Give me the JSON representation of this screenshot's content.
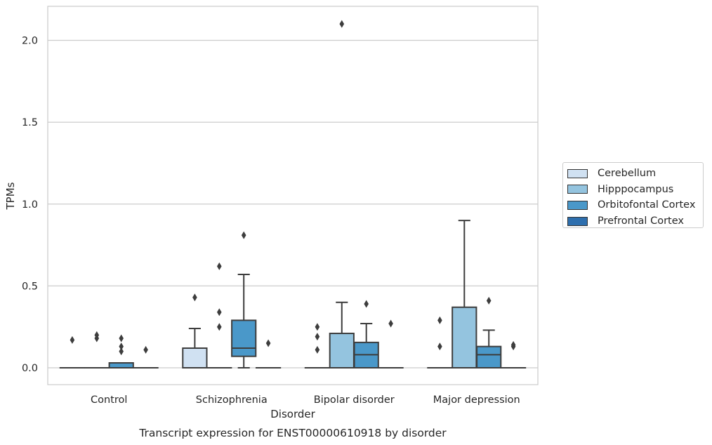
{
  "chart_data": {
    "type": "box",
    "title": "Transcript expression for ENST00000610918 by disorder",
    "xlabel": "Disorder",
    "ylabel": "TPMs",
    "categories": [
      "Control",
      "Schizophrenia",
      "Bipolar disorder",
      "Major depression"
    ],
    "y_ticks": [
      "0.0",
      "0.5",
      "1.0",
      "1.5",
      "2.0"
    ],
    "ylim": [
      -0.1,
      2.22
    ],
    "grid": "horizontal",
    "legend_placement": "right",
    "series": [
      {
        "name": "Cerebellum",
        "color": "#d0e1f2",
        "boxes": [
          {
            "q1": 0,
            "median": 0,
            "q3": 0,
            "whisker_low": 0,
            "whisker_high": 0,
            "outliers": [
              0.17
            ]
          },
          {
            "q1": 0,
            "median": 0,
            "q3": 0.12,
            "whisker_low": 0,
            "whisker_high": 0.24,
            "outliers": [
              0.43
            ]
          },
          {
            "q1": 0,
            "median": 0,
            "q3": 0,
            "whisker_low": 0,
            "whisker_high": 0,
            "outliers": [
              0.25,
              0.19,
              0.11
            ]
          },
          {
            "q1": 0,
            "median": 0,
            "q3": 0,
            "whisker_low": 0,
            "whisker_high": 0,
            "outliers": [
              0.29,
              0.13
            ]
          }
        ]
      },
      {
        "name": "Hipppocampus",
        "color": "#94c4df",
        "boxes": [
          {
            "q1": 0,
            "median": 0,
            "q3": 0,
            "whisker_low": 0,
            "whisker_high": 0,
            "outliers": [
              0.2,
              0.18
            ]
          },
          {
            "q1": 0,
            "median": 0,
            "q3": 0,
            "whisker_low": 0,
            "whisker_high": 0,
            "outliers": [
              0.62,
              0.34,
              0.25
            ]
          },
          {
            "q1": 0,
            "median": 0,
            "q3": 0.21,
            "whisker_low": 0,
            "whisker_high": 0.4,
            "outliers": [
              2.1
            ]
          },
          {
            "q1": 0,
            "median": 0,
            "q3": 0.37,
            "whisker_low": 0,
            "whisker_high": 0.9,
            "outliers": []
          }
        ]
      },
      {
        "name": "Orbitofontal Cortex",
        "color": "#4a98c9",
        "boxes": [
          {
            "q1": 0,
            "median": 0,
            "q3": 0.03,
            "whisker_low": 0,
            "whisker_high": 0.03,
            "outliers": [
              0.18,
              0.13,
              0.1
            ]
          },
          {
            "q1": 0.07,
            "median": 0.12,
            "q3": 0.29,
            "whisker_low": 0,
            "whisker_high": 0.57,
            "outliers": [
              0.81
            ]
          },
          {
            "q1": 0,
            "median": 0.08,
            "q3": 0.155,
            "whisker_low": 0,
            "whisker_high": 0.27,
            "outliers": [
              0.39
            ]
          },
          {
            "q1": 0,
            "median": 0.08,
            "q3": 0.13,
            "whisker_low": 0,
            "whisker_high": 0.23,
            "outliers": [
              0.41
            ]
          }
        ]
      },
      {
        "name": "Prefrontal Cortex",
        "color": "#2e6fae",
        "boxes": [
          {
            "q1": 0,
            "median": 0,
            "q3": 0,
            "whisker_low": 0,
            "whisker_high": 0,
            "outliers": [
              0.11
            ]
          },
          {
            "q1": 0,
            "median": 0,
            "q3": 0,
            "whisker_low": 0,
            "whisker_high": 0,
            "outliers": [
              0.15
            ]
          },
          {
            "q1": 0,
            "median": 0,
            "q3": 0,
            "whisker_low": 0,
            "whisker_high": 0,
            "outliers": [
              0.27
            ]
          },
          {
            "q1": 0,
            "median": 0,
            "q3": 0,
            "whisker_low": 0,
            "whisker_high": 0,
            "outliers": [
              0.14,
              0.13
            ]
          }
        ]
      }
    ]
  }
}
